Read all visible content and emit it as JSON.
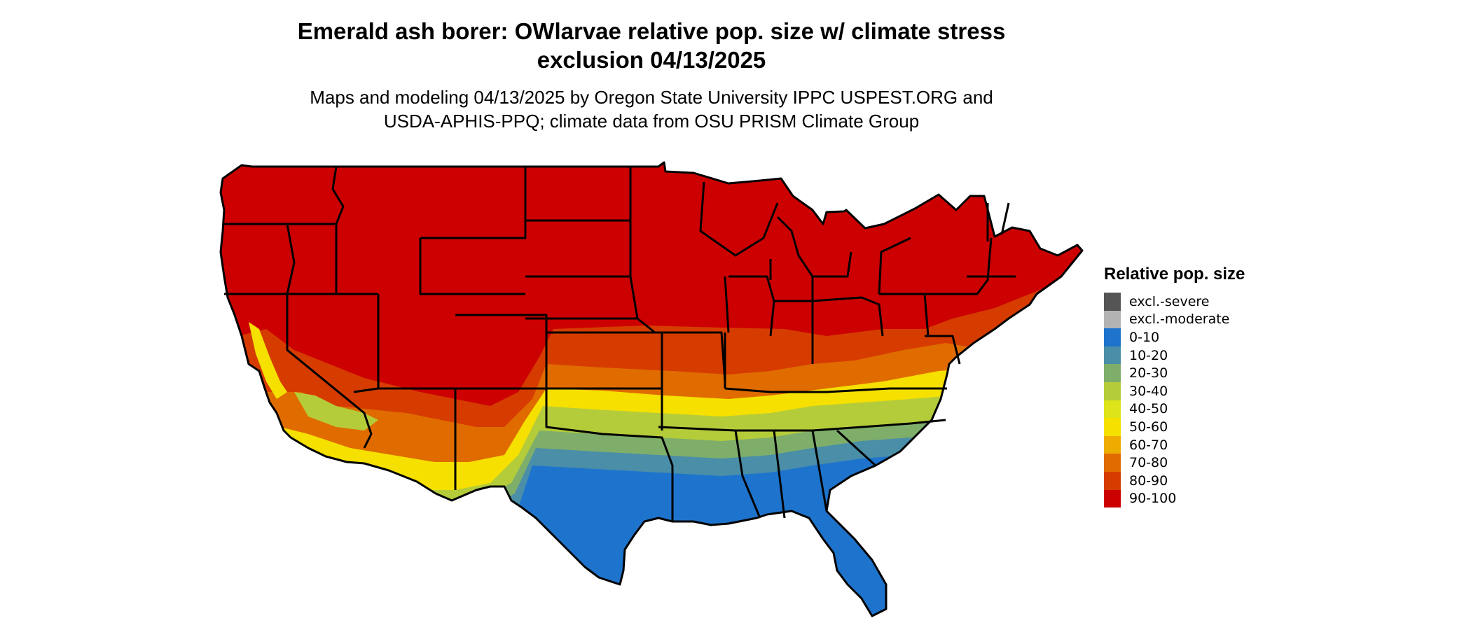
{
  "title": {
    "line1": "Emerald ash borer: OWlarvae relative pop. size w/ climate stress",
    "line2": "exclusion 04/13/2025"
  },
  "subtitle": {
    "line1": "Maps and modeling 04/13/2025 by Oregon State University IPPC USPEST.ORG and",
    "line2": "USDA-APHIS-PPQ; climate data from OSU PRISM Climate Group"
  },
  "map": {
    "region": "Continental United States",
    "boundaries": "state",
    "description_colors": {
      "north": "#cc0000",
      "band_80_90": "#d63c00",
      "band_70_80": "#e06c00",
      "band_50_60": "#f5e000",
      "band_30_40": "#b5cc3a",
      "band_20_30": "#7fae6a",
      "band_10_20": "#4a8ea8",
      "south": "#1e74cc"
    }
  },
  "legend": {
    "title": "Relative pop. size",
    "items": [
      {
        "label": "excl.-severe",
        "color": "#555555"
      },
      {
        "label": "excl.-moderate",
        "color": "#b3b3b3"
      },
      {
        "label": "0-10",
        "color": "#1e74cc"
      },
      {
        "label": "10-20",
        "color": "#4a8ea8"
      },
      {
        "label": "20-30",
        "color": "#7fae6a"
      },
      {
        "label": "30-40",
        "color": "#b5cc3a"
      },
      {
        "label": "40-50",
        "color": "#dde41a"
      },
      {
        "label": "50-60",
        "color": "#f5e000"
      },
      {
        "label": "60-70",
        "color": "#eeac00"
      },
      {
        "label": "70-80",
        "color": "#e06c00"
      },
      {
        "label": "80-90",
        "color": "#d63c00"
      },
      {
        "label": "90-100",
        "color": "#cc0000"
      }
    ]
  }
}
